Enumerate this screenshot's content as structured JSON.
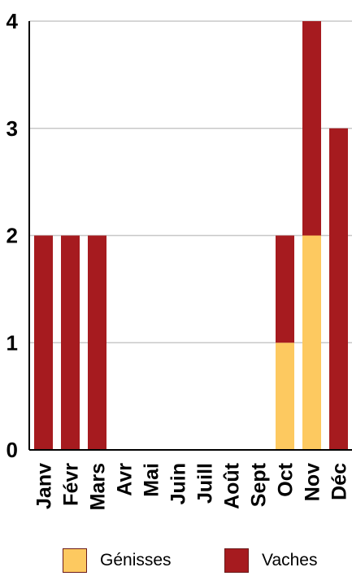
{
  "chart_data": {
    "type": "bar",
    "stacked": true,
    "categories": [
      "Janv",
      "Févr",
      "Mars",
      "Avr",
      "Mai",
      "Juin",
      "Juill",
      "Août",
      "Sept",
      "Oct",
      "Nov",
      "Déc"
    ],
    "series": [
      {
        "name": "Génisses",
        "color": "#fdc960",
        "values": [
          0,
          0,
          0,
          0,
          0,
          0,
          0,
          0,
          0,
          1,
          2,
          0
        ]
      },
      {
        "name": "Vaches",
        "color": "#a61b1f",
        "values": [
          2,
          2,
          2,
          0,
          0,
          0,
          0,
          0,
          0,
          1,
          2,
          3
        ]
      }
    ],
    "yticks": [
      "0",
      "1",
      "2",
      "3",
      "4"
    ],
    "ylim": [
      0,
      4
    ],
    "grid": true,
    "legend": "bottom"
  }
}
